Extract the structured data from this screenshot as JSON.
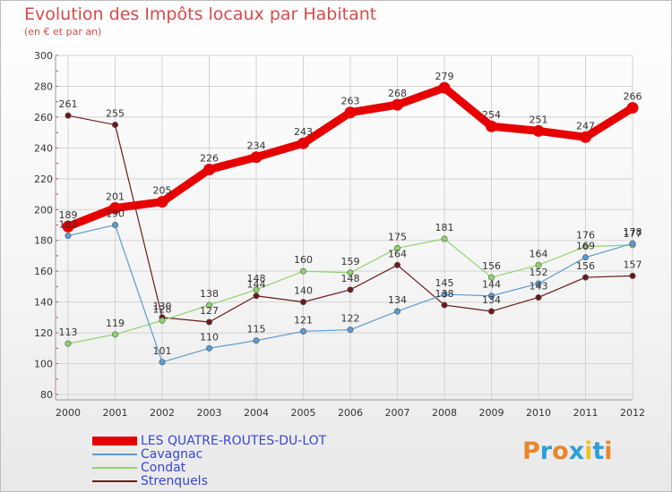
{
  "header": {
    "title": "Evolution des Impôts locaux par Habitant",
    "subtitle": "(en € et par an)"
  },
  "chart_data": {
    "type": "line",
    "title": "Evolution des Impôts locaux par Habitant",
    "subtitle": "(en € et par an)",
    "xlabel": "",
    "ylabel": "",
    "ylim": [
      80,
      300
    ],
    "y_ticks": [
      80,
      100,
      120,
      140,
      160,
      180,
      200,
      220,
      240,
      260,
      280,
      300
    ],
    "categories": [
      "2000",
      "2001",
      "2002",
      "2003",
      "2004",
      "2005",
      "2006",
      "2007",
      "2008",
      "2009",
      "2010",
      "2011",
      "2012"
    ],
    "series": [
      {
        "name": "LES QUATRE-ROUTES-DU-LOT",
        "color": "#e60000",
        "values": [
          189,
          201,
          205,
          226,
          234,
          243,
          263,
          268,
          279,
          254,
          251,
          247,
          266
        ]
      },
      {
        "name": "Cavagnac",
        "color": "#5b9bd5",
        "values": [
          183,
          190,
          101,
          110,
          115,
          121,
          122,
          134,
          145,
          144,
          152,
          169,
          178
        ]
      },
      {
        "name": "Condat",
        "color": "#8ed46a",
        "values": [
          113,
          119,
          128,
          138,
          148,
          160,
          159,
          175,
          181,
          156,
          164,
          176,
          177
        ]
      },
      {
        "name": "Strenquels",
        "color": "#6b1a1a",
        "values": [
          261,
          255,
          130,
          127,
          144,
          140,
          148,
          164,
          138,
          134,
          143,
          156,
          157
        ]
      }
    ]
  },
  "legend": {
    "items": [
      {
        "label": "LES QUATRE-ROUTES-DU-LOT"
      },
      {
        "label": "Cavagnac"
      },
      {
        "label": "Condat"
      },
      {
        "label": "Strenquels"
      }
    ]
  },
  "brand": {
    "logo_text": "Proxiti"
  }
}
